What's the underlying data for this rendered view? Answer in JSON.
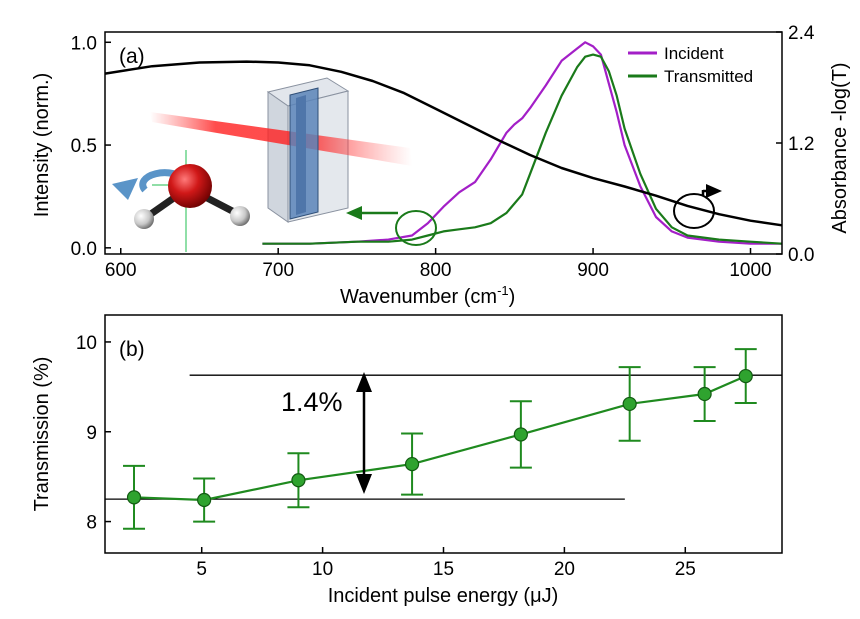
{
  "chart_data": [
    {
      "type": "line",
      "panel_label": "(a)",
      "xlabel_main": "Wavenumber (cm",
      "xlabel_sup": "-1",
      "xlabel_tail": ")",
      "ylabel_left": "Intensity (norm.)",
      "ylabel_right": "Absorbance -log(T)",
      "xlim": [
        590,
        1020
      ],
      "ylim_left": [
        -0.03,
        1.05
      ],
      "ylim_right": [
        0.0,
        2.4
      ],
      "x_ticks": [
        "600",
        "700",
        "800",
        "900",
        "1000"
      ],
      "y_left_ticks": [
        "0.0",
        "0.5",
        "1.0"
      ],
      "y_right_ticks": [
        "0.0",
        "1.2",
        "2.4"
      ],
      "grid": false,
      "legend_position": "top-right",
      "colors": {
        "incident": "#a31fc7",
        "transmitted": "#1a7a1a",
        "absorbance": "#000000"
      },
      "series": [
        {
          "name": "Incident",
          "axis": "left",
          "x": [
            690,
            720,
            750,
            770,
            785,
            795,
            805,
            815,
            825,
            835,
            845,
            850,
            855,
            860,
            870,
            880,
            890,
            895,
            900,
            905,
            910,
            915,
            920,
            930,
            940,
            950,
            960,
            980,
            1000,
            1020
          ],
          "y": [
            0.02,
            0.02,
            0.03,
            0.04,
            0.06,
            0.12,
            0.2,
            0.27,
            0.32,
            0.43,
            0.56,
            0.6,
            0.63,
            0.68,
            0.79,
            0.91,
            0.97,
            1.0,
            0.98,
            0.94,
            0.8,
            0.66,
            0.5,
            0.3,
            0.15,
            0.08,
            0.05,
            0.03,
            0.02,
            0.02
          ]
        },
        {
          "name": "Transmitted",
          "axis": "left",
          "x": [
            690,
            720,
            750,
            770,
            785,
            795,
            805,
            815,
            825,
            835,
            845,
            855,
            860,
            870,
            880,
            890,
            895,
            900,
            905,
            910,
            915,
            920,
            930,
            940,
            950,
            960,
            980,
            1000,
            1020
          ],
          "y": [
            0.02,
            0.02,
            0.03,
            0.03,
            0.04,
            0.06,
            0.08,
            0.09,
            0.1,
            0.12,
            0.17,
            0.26,
            0.36,
            0.56,
            0.74,
            0.88,
            0.93,
            0.94,
            0.93,
            0.86,
            0.74,
            0.58,
            0.36,
            0.19,
            0.1,
            0.06,
            0.04,
            0.03,
            0.02
          ]
        },
        {
          "name": "",
          "axis": "right",
          "x": [
            590,
            620,
            650,
            680,
            700,
            720,
            740,
            760,
            780,
            800,
            820,
            840,
            860,
            880,
            900,
            920,
            940,
            960,
            980,
            1000,
            1020
          ],
          "y": [
            1.95,
            2.03,
            2.07,
            2.08,
            2.07,
            2.04,
            1.97,
            1.87,
            1.74,
            1.57,
            1.4,
            1.23,
            1.07,
            0.93,
            0.82,
            0.73,
            0.63,
            0.52,
            0.43,
            0.36,
            0.31
          ]
        }
      ],
      "annotations": [
        "Incident",
        "Transmitted"
      ]
    },
    {
      "type": "scatter",
      "panel_label": "(b)",
      "xlabel": "Incident pulse energy (μJ)",
      "ylabel": "Transmission (%)",
      "xlim": [
        1,
        29
      ],
      "ylim": [
        7.65,
        10.3
      ],
      "x_ticks": [
        "5",
        "10",
        "15",
        "20",
        "25"
      ],
      "y_ticks": [
        "8",
        "9",
        "10"
      ],
      "grid": false,
      "colors": {
        "points": "#1f8a1f",
        "reference_lines": "#000000"
      },
      "series": [
        {
          "name": "",
          "x": [
            2.2,
            5.1,
            9.0,
            13.7,
            18.2,
            22.7,
            25.8,
            27.5
          ],
          "y": [
            8.27,
            8.24,
            8.46,
            8.64,
            8.97,
            9.31,
            9.42,
            9.62
          ],
          "error": [
            0.35,
            0.24,
            0.3,
            0.34,
            0.37,
            0.41,
            0.3,
            0.3
          ]
        }
      ],
      "reference_lines": [
        {
          "y": 9.63,
          "x_range": [
            4.5,
            29
          ]
        },
        {
          "y": 8.25,
          "x_range": [
            1,
            22.5
          ]
        }
      ],
      "arrow_label": "1.4%"
    }
  ]
}
